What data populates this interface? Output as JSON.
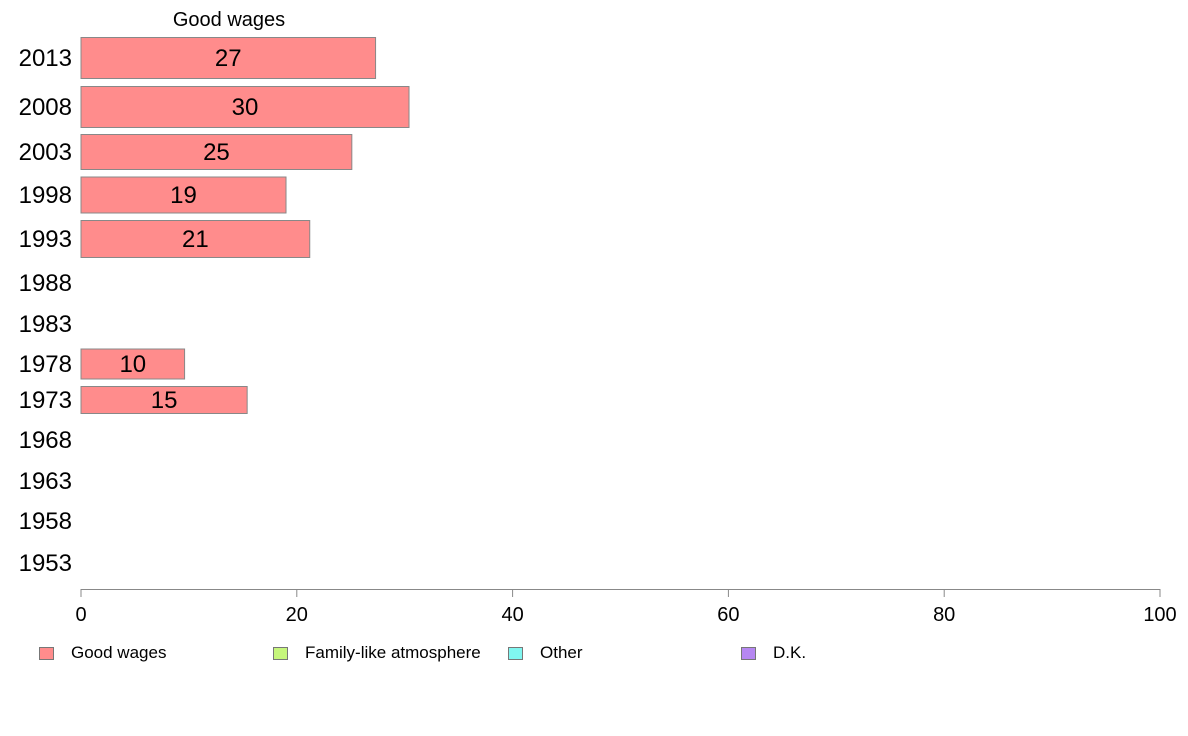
{
  "chart_data": {
    "type": "bar",
    "orientation": "horizontal",
    "title": "Good wages",
    "categories": [
      "2013",
      "2008",
      "2003",
      "1998",
      "1993",
      "1988",
      "1983",
      "1978",
      "1973",
      "1968",
      "1963",
      "1958",
      "1953"
    ],
    "series": [
      {
        "name": "Good wages",
        "color": "#ff8c8c",
        "values": [
          27.3,
          30.4,
          25.1,
          19.0,
          21.2,
          null,
          null,
          9.6,
          15.4,
          null,
          null,
          null,
          null
        ],
        "labels": [
          "27",
          "30",
          "25",
          "19",
          "21",
          null,
          null,
          "10",
          "15",
          null,
          null,
          null,
          null
        ]
      }
    ],
    "xlim": [
      0,
      100
    ],
    "xticks": [
      0,
      20,
      40,
      60,
      80,
      100
    ],
    "grid": false,
    "legend_position": "bottom",
    "legend": [
      {
        "name": "Good wages",
        "color": "#ff8c8c"
      },
      {
        "name": "Family-like atmosphere",
        "color": "#c6f67c"
      },
      {
        "name": "Other",
        "color": "#80f6f0"
      },
      {
        "name": "D.K.",
        "color": "#b687f2"
      }
    ]
  }
}
